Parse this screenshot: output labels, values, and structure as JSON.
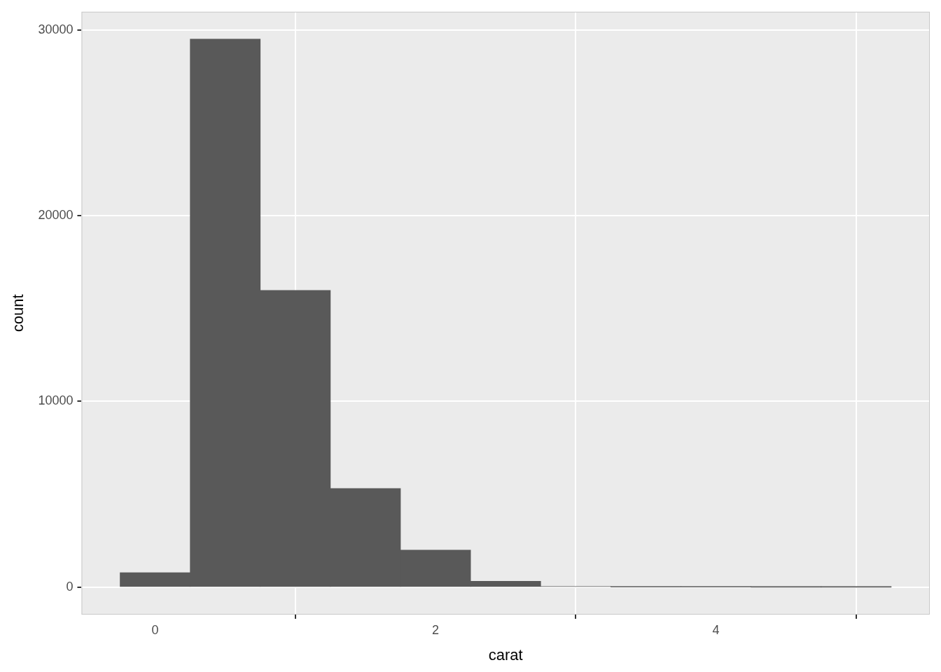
{
  "chart_data": {
    "type": "histogram",
    "bins": [
      -0.25,
      0.25,
      0.75,
      1.25,
      1.75,
      2.25,
      2.75,
      3.25,
      3.75,
      4.25,
      4.75,
      5.25
    ],
    "values": [
      785,
      29498,
      15977,
      5313,
      2002,
      322,
      32,
      5,
      4,
      1,
      1
    ],
    "color": "#595959",
    "x_label": "carat",
    "y_label": "count",
    "xlim": [
      -0.525,
      5.525
    ],
    "ylim": [
      -1475,
      30973
    ],
    "xticks": [
      0,
      2,
      4
    ],
    "yticks": [
      0,
      10000,
      20000,
      30000
    ],
    "grid": true
  }
}
